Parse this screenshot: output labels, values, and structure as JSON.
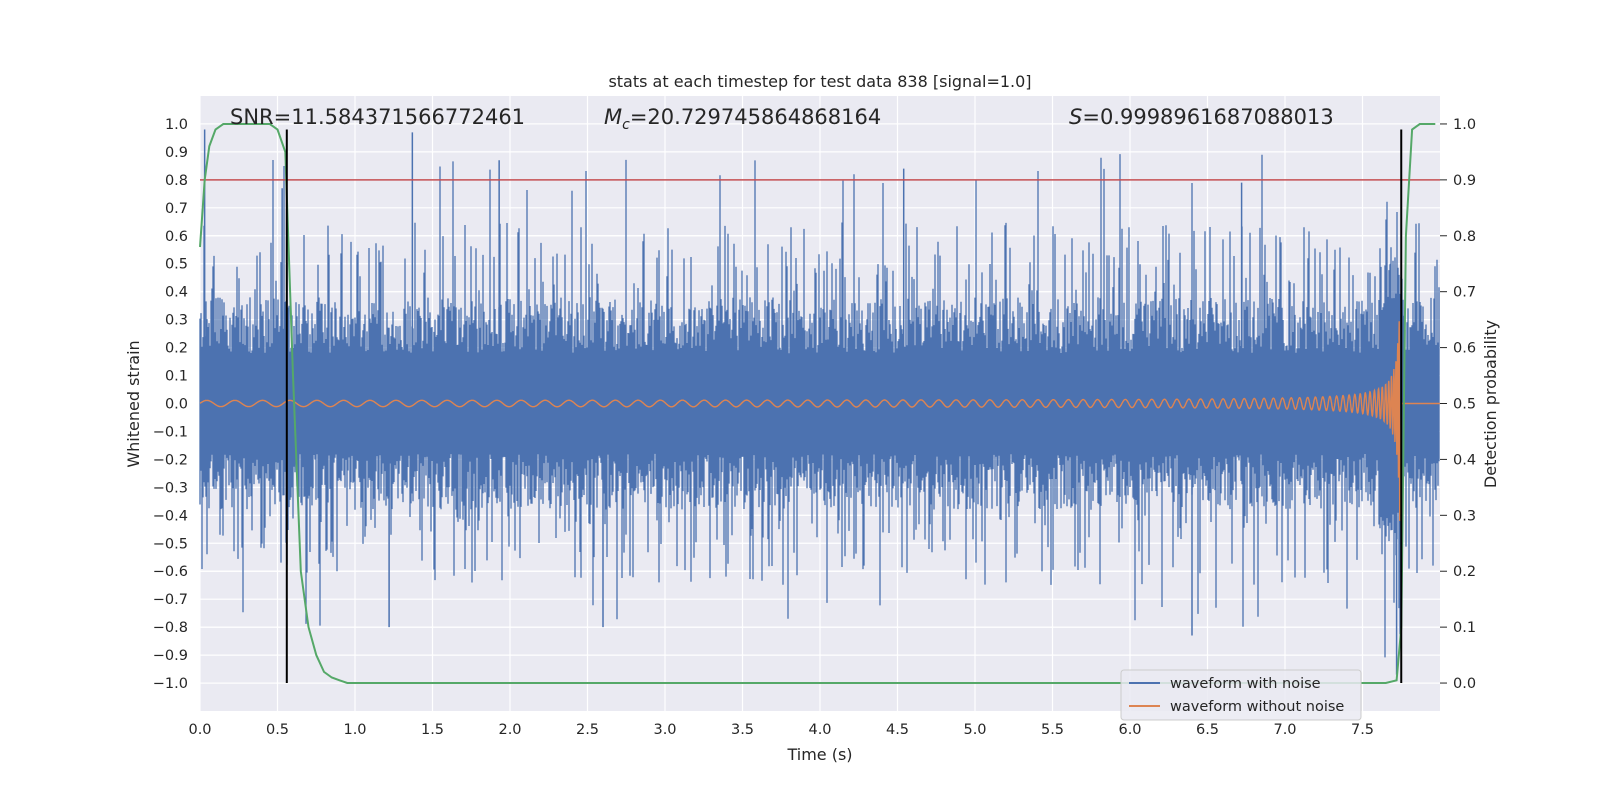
{
  "chart_data": {
    "type": "line",
    "title": "stats at each timestep for test data 838 [signal=1.0]",
    "xlabel": "Time (s)",
    "ylabel": "Whitened strain",
    "y2label": "Detection probability",
    "xlim": [
      0.0,
      8.0
    ],
    "ylim": [
      -1.1,
      1.1
    ],
    "y2lim": [
      -0.05,
      1.05
    ],
    "xticks": [
      "0.0",
      "0.5",
      "1.0",
      "1.5",
      "2.0",
      "2.5",
      "3.0",
      "3.5",
      "4.0",
      "4.5",
      "5.0",
      "5.5",
      "6.0",
      "6.5",
      "7.0",
      "7.5"
    ],
    "yticks": [
      "1.0",
      "0.9",
      "0.8",
      "0.7",
      "0.6",
      "0.5",
      "0.4",
      "0.3",
      "0.2",
      "0.1",
      "0.0",
      "−0.1",
      "−0.2",
      "−0.3",
      "−0.4",
      "−0.5",
      "−0.6",
      "−0.7",
      "−0.8",
      "−0.9",
      "−1.0"
    ],
    "y2ticks": [
      "1.0",
      "0.9",
      "0.8",
      "0.7",
      "0.6",
      "0.5",
      "0.4",
      "0.3",
      "0.2",
      "0.1",
      "0.0"
    ],
    "grid": true,
    "legend_position": "lower right",
    "annotations": {
      "snr": "SNR=11.584371566772461",
      "mc_prefix": "M",
      "mc_sub": "c",
      "mc_value": "=20.729745864868164",
      "s_prefix": "S",
      "s_value": "=0.9998961687088013"
    },
    "series": [
      {
        "name": "waveform with noise",
        "color": "#4c72b0",
        "axis": "left",
        "description_values": {
          "typical_envelope": [
            -0.4,
            0.45
          ],
          "max_spike": 0.98,
          "min_spike": -0.97
        }
      },
      {
        "name": "waveform without noise",
        "color": "#dd8452",
        "axis": "left",
        "chirp": {
          "t_merger": 7.74,
          "early_amplitude": 0.01,
          "late_amplitude": 0.42
        }
      },
      {
        "color": "#55a868",
        "axis": "right",
        "x": [
          0.0,
          0.03,
          0.06,
          0.1,
          0.15,
          0.2,
          0.3,
          0.4,
          0.45,
          0.5,
          0.55,
          0.6,
          0.65,
          0.7,
          0.75,
          0.8,
          0.85,
          0.9,
          0.95,
          1.0,
          1.5,
          2.0,
          3.0,
          4.0,
          5.0,
          6.0,
          7.0,
          7.5,
          7.65,
          7.72,
          7.75,
          7.78,
          7.82,
          7.87,
          7.92,
          7.97
        ],
        "y": [
          0.78,
          0.9,
          0.96,
          0.99,
          1.0,
          1.0,
          1.0,
          1.0,
          1.0,
          0.99,
          0.95,
          0.55,
          0.2,
          0.1,
          0.05,
          0.02,
          0.01,
          0.005,
          0.0,
          0.0,
          0.0,
          0.0,
          0.0,
          0.0,
          0.0,
          0.0,
          0.0,
          0.0,
          0.0,
          0.005,
          0.1,
          0.8,
          0.99,
          1.0,
          1.0,
          1.0
        ]
      }
    ],
    "hlines": [
      {
        "y2": 0.9,
        "color": "#c44e52"
      }
    ],
    "vlines": [
      {
        "x": 0.56,
        "color": "#000000",
        "range": [
          -1.0,
          0.98
        ]
      },
      {
        "x": 7.75,
        "color": "#000000",
        "range": [
          -1.0,
          0.98
        ]
      }
    ]
  },
  "legend": {
    "item1": "waveform with noise",
    "item2": "waveform without noise"
  }
}
